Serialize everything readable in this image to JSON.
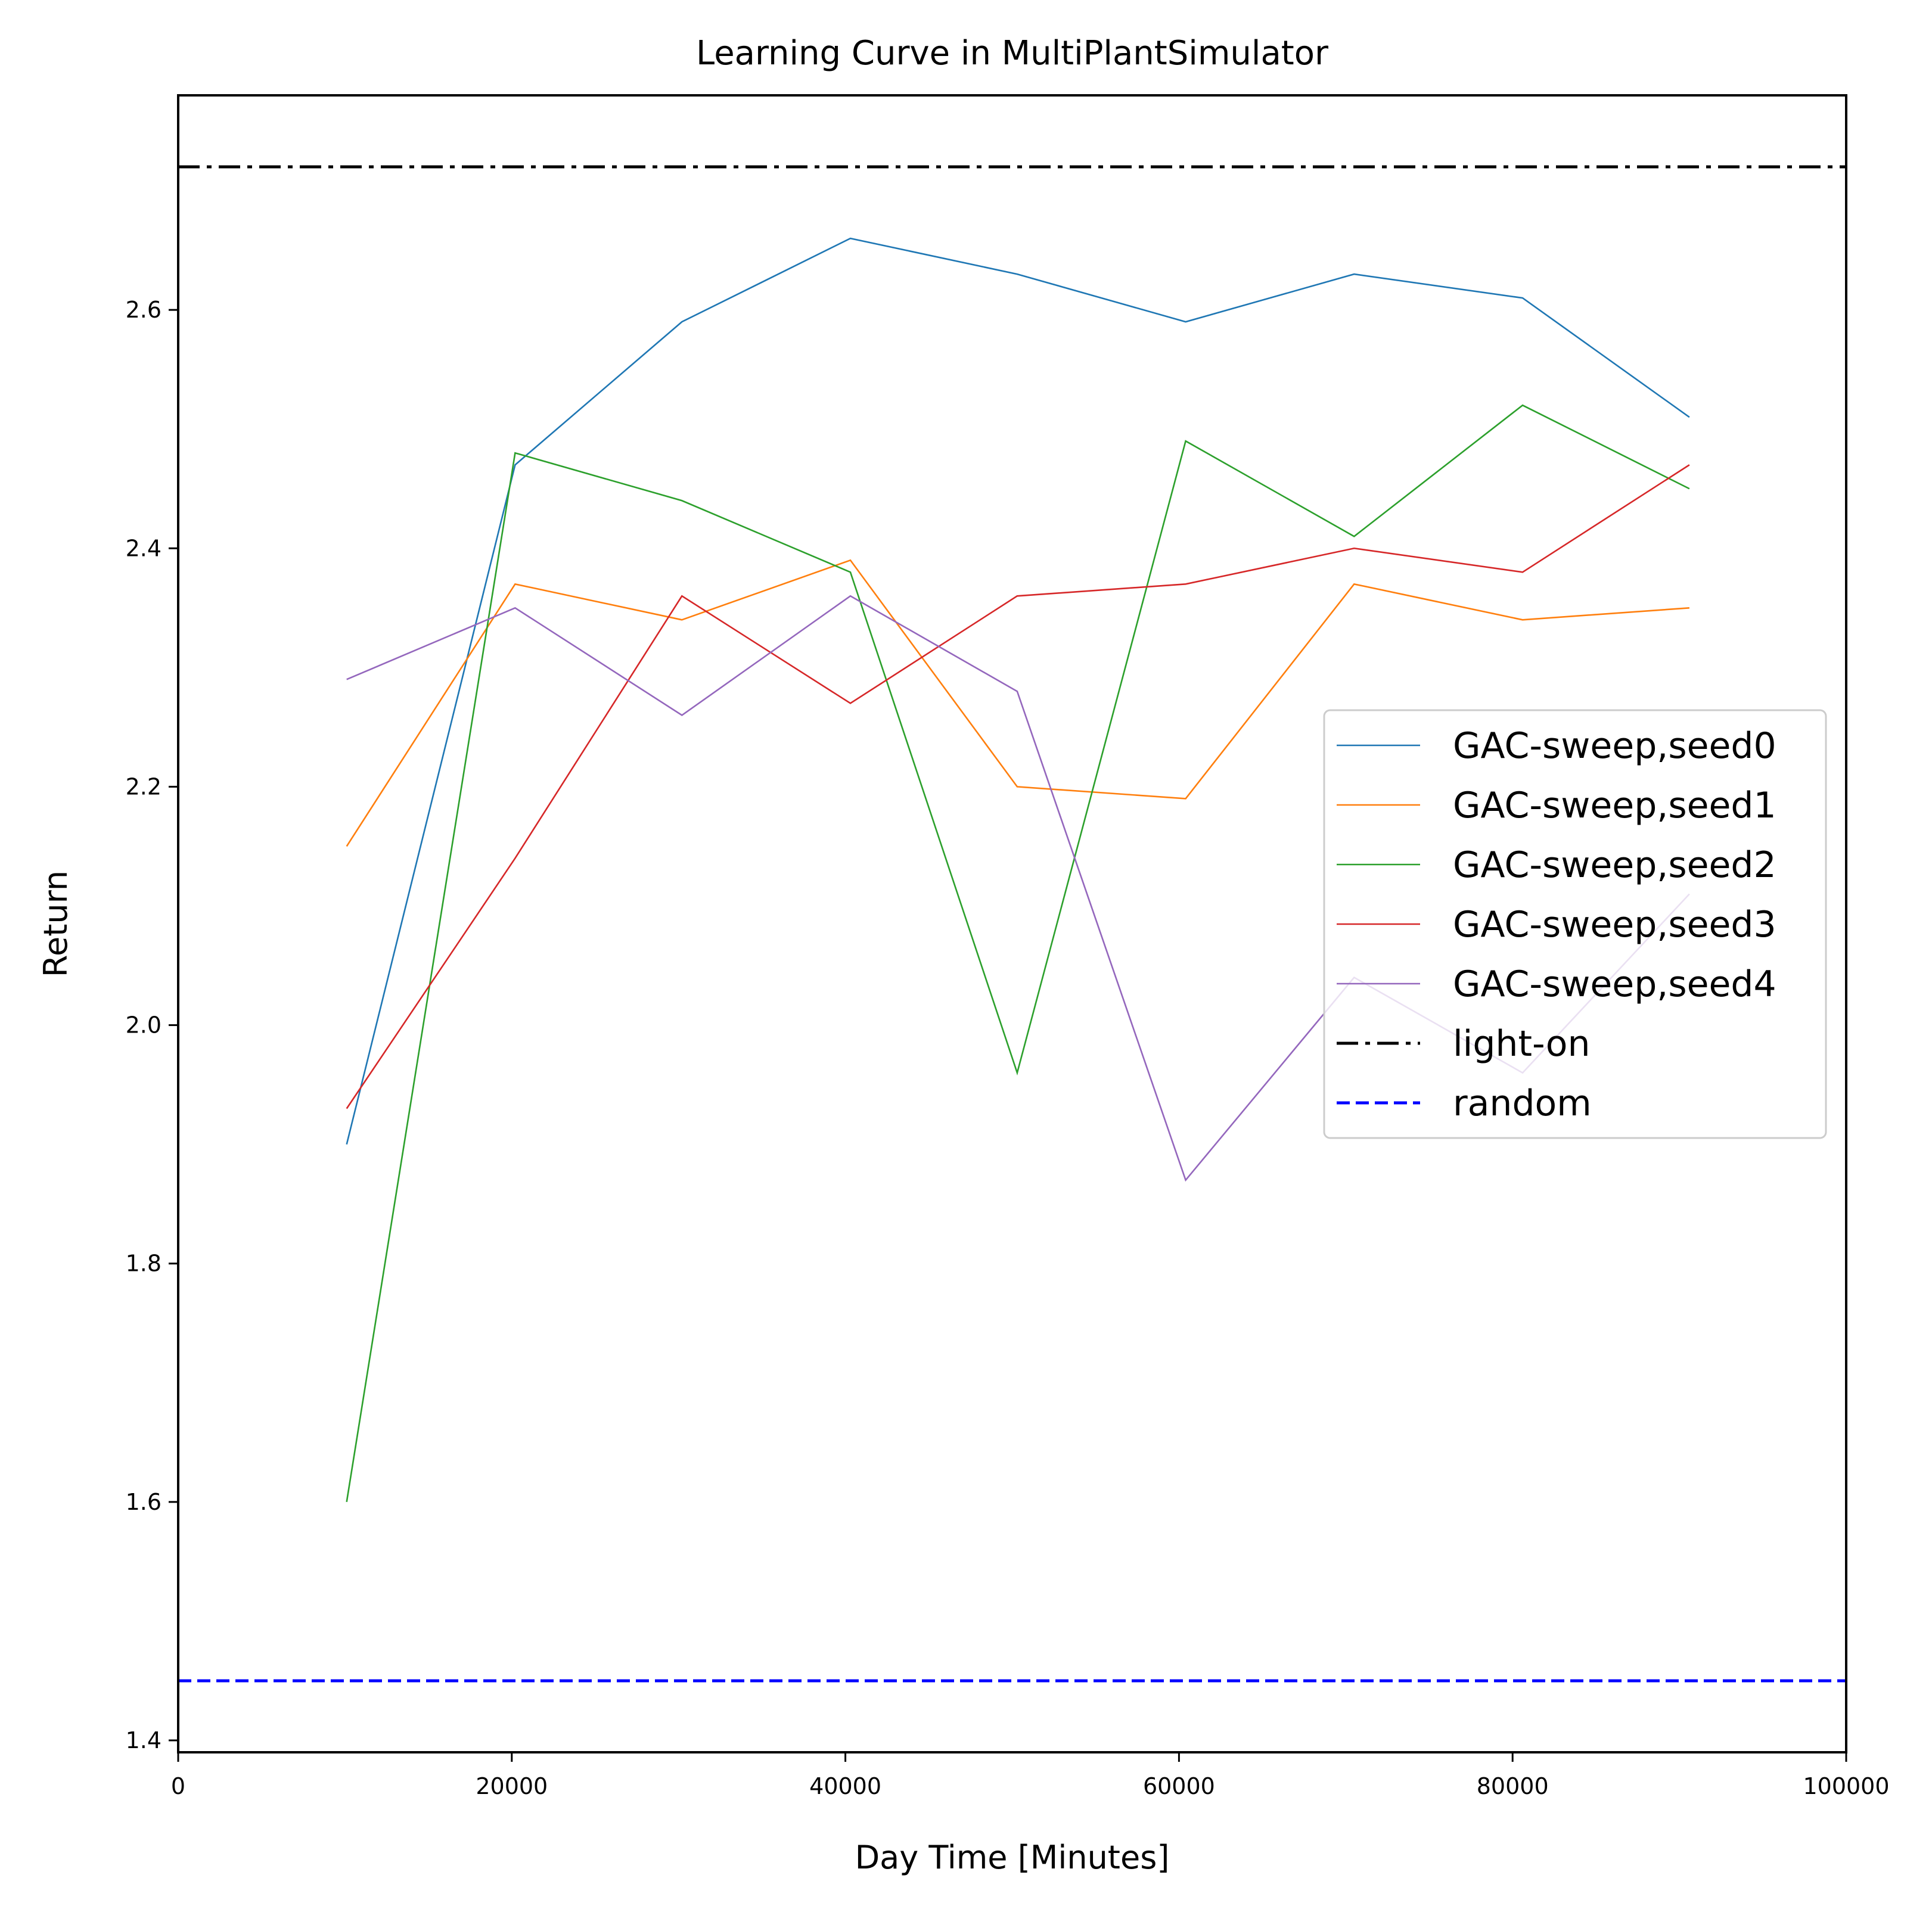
{
  "chart_data": {
    "type": "line",
    "title": "Learning Curve in MultiPlantSimulator",
    "xlabel": "Day Time [Minutes]",
    "ylabel": "Return",
    "xlim": [
      0,
      100000
    ],
    "ylim": [
      1.39,
      2.78
    ],
    "xticks": [
      0,
      20000,
      40000,
      60000,
      80000,
      100000
    ],
    "xtick_labels": [
      "0",
      "20000",
      "40000",
      "60000",
      "80000",
      "100000"
    ],
    "yticks": [
      1.4,
      1.6,
      1.8,
      2.0,
      2.2,
      2.4,
      2.6
    ],
    "ytick_labels": [
      "1.4",
      "1.6",
      "1.8",
      "2.0",
      "2.2",
      "2.4",
      "2.6"
    ],
    "grid": false,
    "legend_position": "center-right",
    "x": [
      10100,
      20200,
      30200,
      40300,
      50300,
      60400,
      70500,
      80600,
      90600
    ],
    "series": [
      {
        "name": "GAC-sweep,seed0",
        "color": "#1f77b4",
        "style": "solid",
        "values": [
          1.9,
          2.47,
          2.59,
          2.66,
          2.63,
          2.59,
          2.63,
          2.61,
          2.51
        ]
      },
      {
        "name": "GAC-sweep,seed1",
        "color": "#ff7f0e",
        "style": "solid",
        "values": [
          2.15,
          2.37,
          2.34,
          2.39,
          2.2,
          2.19,
          2.37,
          2.34,
          2.35
        ]
      },
      {
        "name": "GAC-sweep,seed2",
        "color": "#2ca02c",
        "style": "solid",
        "values": [
          1.6,
          2.48,
          2.44,
          2.38,
          1.96,
          2.49,
          2.41,
          2.52,
          2.45
        ]
      },
      {
        "name": "GAC-sweep,seed3",
        "color": "#d62728",
        "style": "solid",
        "values": [
          1.93,
          2.14,
          2.36,
          2.27,
          2.36,
          2.37,
          2.4,
          2.38,
          2.47
        ]
      },
      {
        "name": "GAC-sweep,seed4",
        "color": "#9467bd",
        "style": "solid",
        "values": [
          2.29,
          2.35,
          2.26,
          2.36,
          2.28,
          1.87,
          2.04,
          1.96,
          2.11
        ]
      }
    ],
    "reference_lines": [
      {
        "name": "light-on",
        "y": 2.72,
        "color": "#000000",
        "style": "dashdot"
      },
      {
        "name": "random",
        "y": 1.45,
        "color": "#0000ff",
        "style": "dashed"
      }
    ]
  }
}
